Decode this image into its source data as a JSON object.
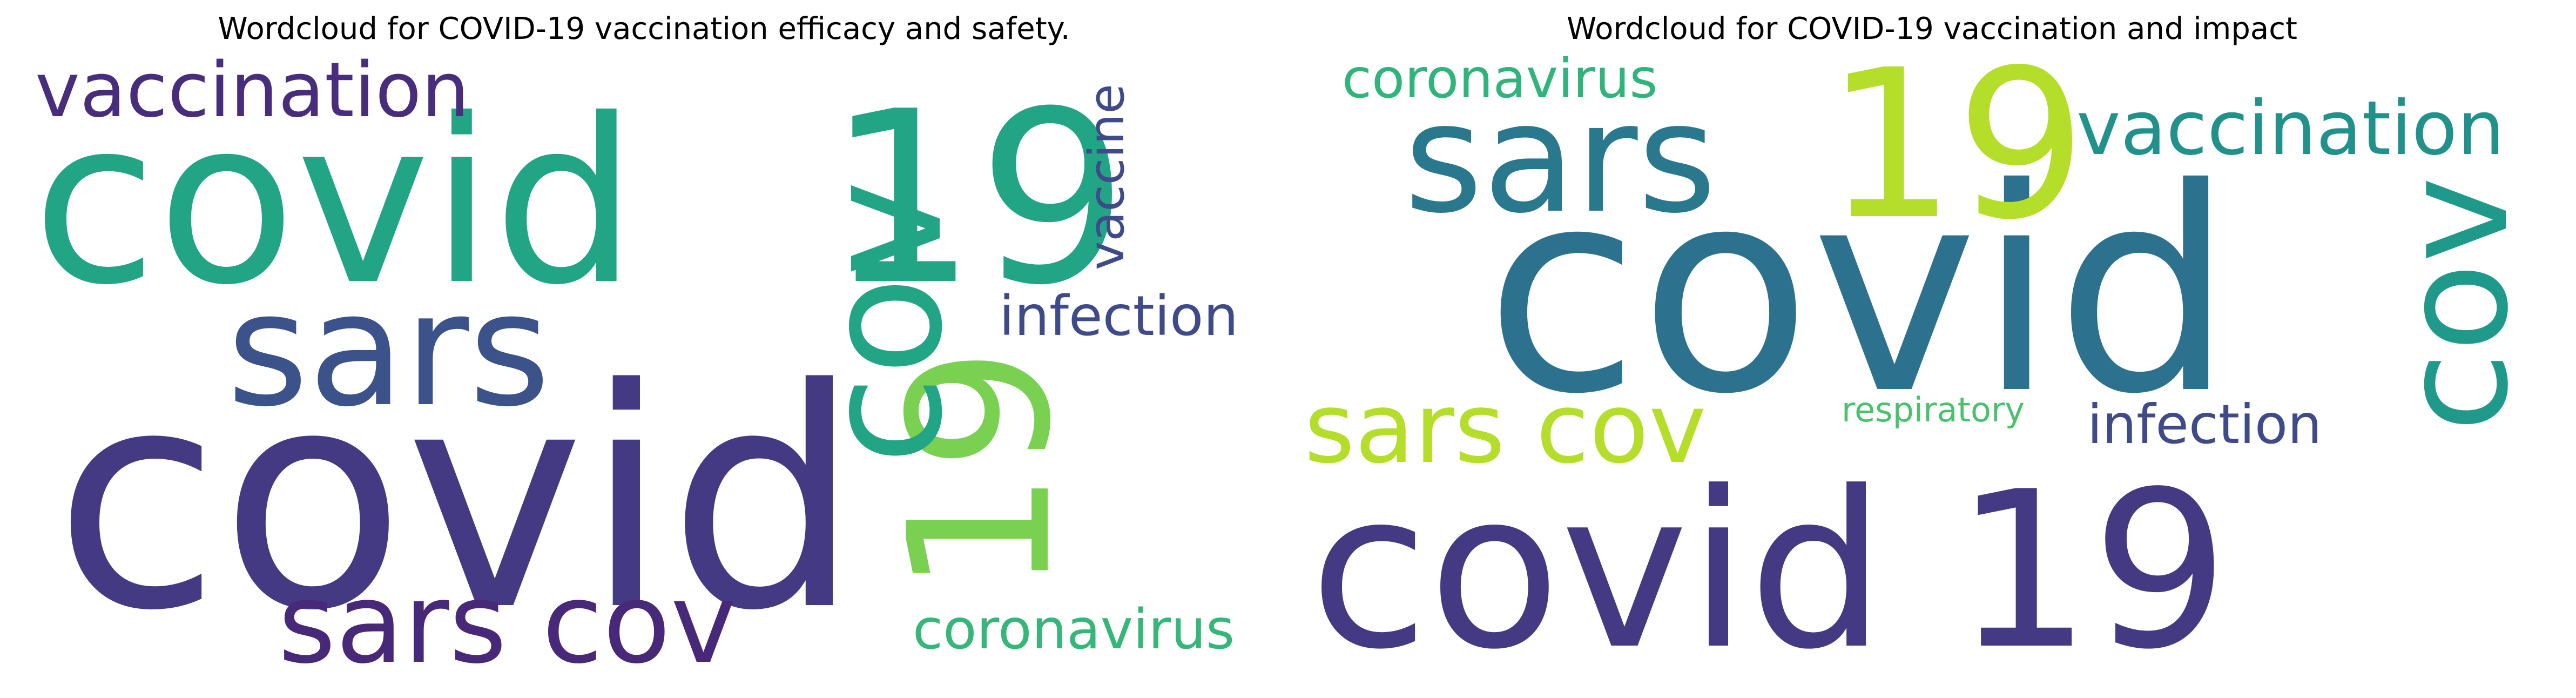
{
  "figure": {
    "panels": [
      {
        "title": "Wordcloud for COVID-19 vaccination efficacy and safety.",
        "words": [
          {
            "text": "covid",
            "color": "#443983"
          },
          {
            "text": "covid",
            "color": "#21a585"
          },
          {
            "text": "19",
            "color": "#21a585"
          },
          {
            "text": "sars",
            "color": "#3b528b"
          },
          {
            "text": "19",
            "color": "#7ad151"
          },
          {
            "text": "cov",
            "color": "#21a585"
          },
          {
            "text": "sars cov",
            "color": "#482878"
          },
          {
            "text": "vaccination",
            "color": "#472d7b"
          },
          {
            "text": "infection",
            "color": "#3e4a89"
          },
          {
            "text": "vaccine",
            "color": "#3e4a89"
          },
          {
            "text": "coronavirus",
            "color": "#35b779"
          }
        ]
      },
      {
        "title": "Wordcloud for COVID-19 vaccination and impact",
        "words": [
          {
            "text": "covid",
            "color": "#2c728e"
          },
          {
            "text": "covid 19",
            "color": "#443983"
          },
          {
            "text": "19",
            "color": "#b5de2b"
          },
          {
            "text": "sars",
            "color": "#2a788e"
          },
          {
            "text": "cov",
            "color": "#1f9a8a"
          },
          {
            "text": "sars cov",
            "color": "#b5de2b"
          },
          {
            "text": "vaccination",
            "color": "#21918c"
          },
          {
            "text": "coronavirus",
            "color": "#2fb47c"
          },
          {
            "text": "infection",
            "color": "#3e4a89"
          },
          {
            "text": "respiratory",
            "color": "#4ac16d"
          }
        ]
      }
    ]
  }
}
